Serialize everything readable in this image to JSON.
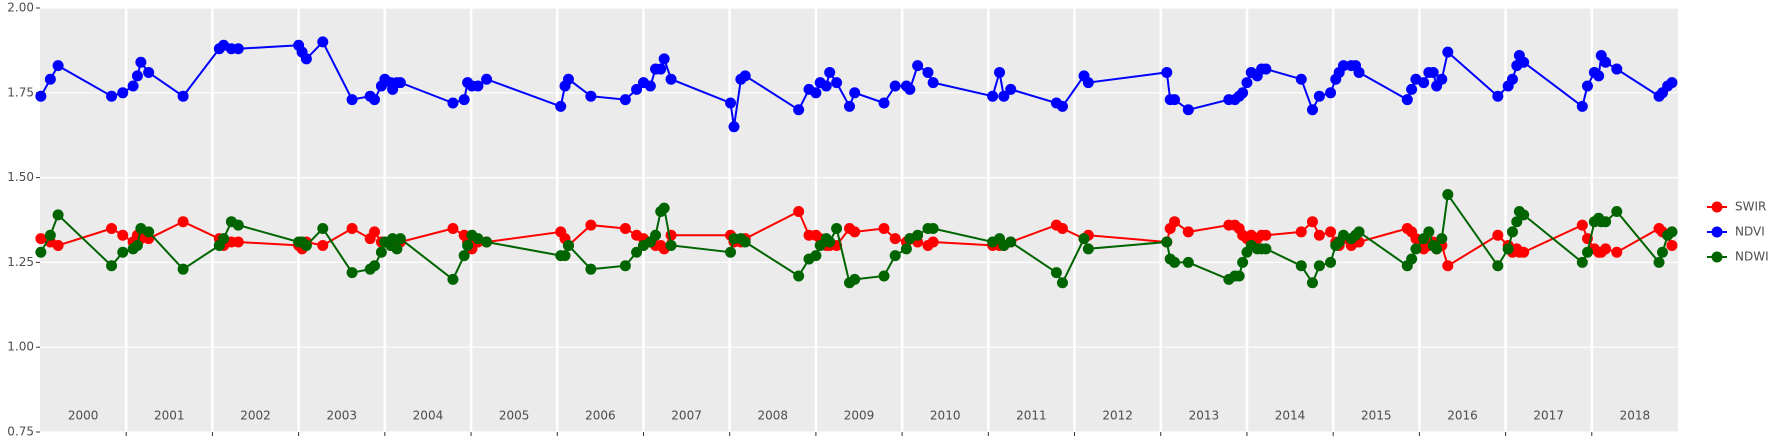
{
  "chart_data": {
    "type": "line",
    "x": [
      2000.01,
      2000.12,
      2000.21,
      2000.83,
      2000.96,
      2001.08,
      2001.13,
      2001.17,
      2001.26,
      2001.66,
      2002.08,
      2002.13,
      2002.22,
      2002.3,
      2003.0,
      2003.04,
      2003.09,
      2003.28,
      2003.62,
      2003.83,
      2003.88,
      2003.96,
      2004.0,
      2004.07,
      2004.09,
      2004.14,
      2004.18,
      2004.79,
      2004.92,
      2004.96,
      2005.01,
      2005.08,
      2005.18,
      2006.04,
      2006.09,
      2006.13,
      2006.39,
      2006.79,
      2006.92,
      2007.0,
      2007.08,
      2007.14,
      2007.2,
      2007.24,
      2007.32,
      2008.01,
      2008.05,
      2008.13,
      2008.18,
      2008.8,
      2008.92,
      2009.0,
      2009.05,
      2009.12,
      2009.16,
      2009.24,
      2009.39,
      2009.45,
      2009.79,
      2009.92,
      2010.05,
      2010.09,
      2010.18,
      2010.3,
      2010.36,
      2011.05,
      2011.13,
      2011.18,
      2011.26,
      2011.79,
      2011.86,
      2012.11,
      2012.16,
      2013.07,
      2013.11,
      2013.16,
      2013.32,
      2013.79,
      2013.86,
      2013.91,
      2013.95,
      2014.0,
      2014.05,
      2014.12,
      2014.17,
      2014.22,
      2014.63,
      2014.76,
      2014.84,
      2014.97,
      2015.03,
      2015.07,
      2015.12,
      2015.21,
      2015.26,
      2015.3,
      2015.86,
      2015.91,
      2015.96,
      2016.05,
      2016.11,
      2016.16,
      2016.2,
      2016.26,
      2016.33,
      2016.91,
      2017.03,
      2017.08,
      2017.13,
      2017.16,
      2017.21,
      2017.89,
      2017.95,
      2018.03,
      2018.08,
      2018.11,
      2018.16,
      2018.29,
      2018.78,
      2018.82,
      2018.88,
      2018.93
    ],
    "series": [
      {
        "name": "SWIR",
        "color": "#ff0000",
        "values": [
          1.32,
          1.31,
          1.3,
          1.35,
          1.33,
          1.31,
          1.33,
          1.32,
          1.32,
          1.37,
          1.32,
          1.3,
          1.31,
          1.31,
          1.3,
          1.29,
          1.31,
          1.3,
          1.35,
          1.32,
          1.34,
          1.31,
          1.31,
          1.3,
          1.3,
          1.31,
          1.31,
          1.35,
          1.33,
          1.31,
          1.29,
          1.31,
          1.31,
          1.34,
          1.32,
          1.3,
          1.36,
          1.35,
          1.33,
          1.32,
          1.31,
          1.3,
          1.3,
          1.29,
          1.33,
          1.33,
          1.31,
          1.31,
          1.32,
          1.4,
          1.33,
          1.33,
          1.32,
          1.3,
          1.3,
          1.3,
          1.35,
          1.34,
          1.35,
          1.32,
          1.31,
          1.32,
          1.31,
          1.3,
          1.31,
          1.3,
          1.3,
          1.3,
          1.31,
          1.36,
          1.35,
          1.32,
          1.33,
          1.31,
          1.35,
          1.37,
          1.34,
          1.36,
          1.36,
          1.35,
          1.33,
          1.32,
          1.33,
          1.32,
          1.33,
          1.33,
          1.34,
          1.37,
          1.33,
          1.34,
          1.31,
          1.3,
          1.32,
          1.3,
          1.31,
          1.31,
          1.35,
          1.34,
          1.32,
          1.29,
          1.3,
          1.31,
          1.29,
          1.3,
          1.24,
          1.33,
          1.3,
          1.28,
          1.29,
          1.28,
          1.28,
          1.36,
          1.32,
          1.29,
          1.28,
          1.28,
          1.29,
          1.28,
          1.35,
          1.34,
          1.33,
          1.3
        ]
      },
      {
        "name": "NDVI",
        "color": "#0000ff",
        "values": [
          1.74,
          1.79,
          1.83,
          1.74,
          1.75,
          1.77,
          1.8,
          1.84,
          1.81,
          1.74,
          1.88,
          1.89,
          1.88,
          1.88,
          1.89,
          1.87,
          1.85,
          1.9,
          1.73,
          1.74,
          1.73,
          1.77,
          1.79,
          1.78,
          1.76,
          1.78,
          1.78,
          1.72,
          1.73,
          1.78,
          1.77,
          1.77,
          1.79,
          1.71,
          1.77,
          1.79,
          1.74,
          1.73,
          1.76,
          1.78,
          1.77,
          1.82,
          1.82,
          1.85,
          1.79,
          1.72,
          1.65,
          1.79,
          1.8,
          1.7,
          1.76,
          1.75,
          1.78,
          1.77,
          1.81,
          1.78,
          1.71,
          1.75,
          1.72,
          1.77,
          1.77,
          1.76,
          1.83,
          1.81,
          1.78,
          1.74,
          1.81,
          1.74,
          1.76,
          1.72,
          1.71,
          1.8,
          1.78,
          1.81,
          1.73,
          1.73,
          1.7,
          1.73,
          1.73,
          1.74,
          1.75,
          1.78,
          1.81,
          1.8,
          1.82,
          1.82,
          1.79,
          1.7,
          1.74,
          1.75,
          1.79,
          1.81,
          1.83,
          1.83,
          1.83,
          1.81,
          1.73,
          1.76,
          1.79,
          1.78,
          1.81,
          1.81,
          1.77,
          1.79,
          1.87,
          1.74,
          1.77,
          1.79,
          1.83,
          1.86,
          1.84,
          1.71,
          1.77,
          1.81,
          1.8,
          1.86,
          1.84,
          1.82,
          1.74,
          1.75,
          1.77,
          1.78
        ]
      },
      {
        "name": "NDWI",
        "color": "#006400",
        "values": [
          1.28,
          1.33,
          1.39,
          1.24,
          1.28,
          1.29,
          1.3,
          1.35,
          1.34,
          1.23,
          1.3,
          1.32,
          1.37,
          1.36,
          1.31,
          1.31,
          1.3,
          1.35,
          1.22,
          1.23,
          1.24,
          1.28,
          1.31,
          1.3,
          1.32,
          1.29,
          1.32,
          1.2,
          1.27,
          1.3,
          1.33,
          1.32,
          1.31,
          1.27,
          1.27,
          1.3,
          1.23,
          1.24,
          1.28,
          1.3,
          1.31,
          1.33,
          1.4,
          1.41,
          1.3,
          1.28,
          1.32,
          1.32,
          1.31,
          1.21,
          1.26,
          1.27,
          1.3,
          1.32,
          1.31,
          1.35,
          1.19,
          1.2,
          1.21,
          1.27,
          1.29,
          1.32,
          1.33,
          1.35,
          1.35,
          1.31,
          1.32,
          1.3,
          1.31,
          1.22,
          1.19,
          1.32,
          1.29,
          1.31,
          1.26,
          1.25,
          1.25,
          1.2,
          1.21,
          1.21,
          1.25,
          1.28,
          1.3,
          1.29,
          1.29,
          1.29,
          1.24,
          1.19,
          1.24,
          1.25,
          1.3,
          1.31,
          1.33,
          1.32,
          1.33,
          1.34,
          1.24,
          1.26,
          1.29,
          1.32,
          1.34,
          1.3,
          1.29,
          1.32,
          1.45,
          1.24,
          1.29,
          1.34,
          1.37,
          1.4,
          1.39,
          1.25,
          1.28,
          1.37,
          1.38,
          1.37,
          1.37,
          1.4,
          1.25,
          1.28,
          1.33,
          1.34
        ]
      }
    ],
    "xlim": [
      2000,
      2019
    ],
    "xticks": [
      2001,
      2002,
      2003,
      2004,
      2005,
      2006,
      2007,
      2008,
      2009,
      2010,
      2011,
      2012,
      2013,
      2014,
      2015,
      2016,
      2017,
      2018
    ],
    "year_labels": [
      "2000",
      "2001",
      "2002",
      "2003",
      "2004",
      "2005",
      "2006",
      "2007",
      "2008",
      "2009",
      "2010",
      "2011",
      "2012",
      "2013",
      "2014",
      "2015",
      "2016",
      "2017",
      "2018"
    ],
    "ylim": [
      0.75,
      2.0
    ],
    "yticks": [
      {
        "value": 0.75,
        "label": "0.75"
      },
      {
        "value": 1.0,
        "label": "1.00"
      },
      {
        "value": 1.25,
        "label": "1.25"
      },
      {
        "value": 1.5,
        "label": "1.50"
      },
      {
        "value": 1.75,
        "label": "1.75"
      },
      {
        "value": 2.0,
        "label": "2.00"
      }
    ],
    "grid": true,
    "legend": "right"
  }
}
